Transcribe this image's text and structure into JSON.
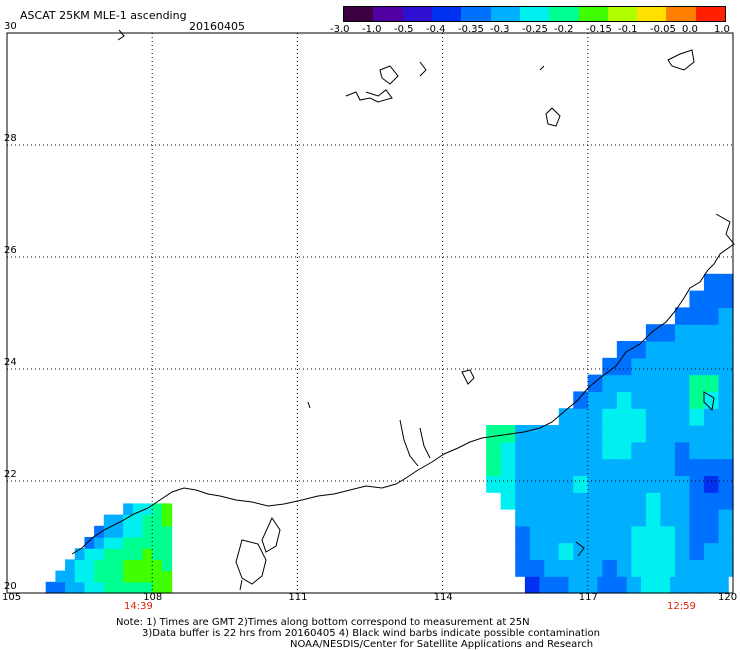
{
  "header": {
    "title": "ASCAT 25KM MLE-1 ascending",
    "date": "20160405"
  },
  "colorbar": {
    "labels": [
      "-3.0",
      "-1.0",
      "-0.5",
      "-0.4",
      "-0.35",
      "-0.3",
      "-0.25",
      "-0.2",
      "-0.15",
      "-0.1",
      "-0.05",
      "0.0",
      "1.0"
    ],
    "colors": [
      "#3a0040",
      "#5000a0",
      "#3010d0",
      "#0030f0",
      "#0070ff",
      "#00b0ff",
      "#00f0f0",
      "#00ff90",
      "#40ff00",
      "#b0ff00",
      "#ffe000",
      "#ff8000",
      "#ff2000"
    ]
  },
  "chart_data": {
    "type": "heatmap",
    "title": "ASCAT 25KM MLE-1 ascending",
    "xlim": [
      105,
      120
    ],
    "ylim": [
      20,
      30
    ],
    "x_ticks": [
      105,
      108,
      111,
      114,
      117,
      120
    ],
    "y_ticks": [
      20,
      22,
      24,
      26,
      28,
      30
    ],
    "x_tick_labels": [
      "105",
      "108",
      "111",
      "114",
      "117",
      "120"
    ],
    "y_tick_labels": [
      "20",
      "22",
      "24",
      "26",
      "28",
      "30"
    ],
    "grid": true,
    "pass_times": [
      {
        "label": "14:39",
        "near_lon": 108
      },
      {
        "label": "12:59",
        "near_lon": 119
      }
    ],
    "swaths": [
      {
        "name": "west",
        "cell_deg": 0.2,
        "lon_start": 105.8,
        "lat_start": 20.0,
        "rows": [
          {
            "lon0": 105.8,
            "values": [
              -0.35,
              -0.35,
              -0.3,
              -0.3,
              -0.25,
              -0.25,
              -0.2,
              -0.2,
              -0.2,
              -0.2,
              -0.2,
              -0.15,
              -0.15
            ]
          },
          {
            "lon0": 106.0,
            "values": [
              -0.3,
              -0.3,
              -0.25,
              -0.25,
              -0.2,
              -0.2,
              -0.2,
              -0.15,
              -0.15,
              -0.15,
              -0.15,
              -0.15
            ]
          },
          {
            "lon0": 106.2,
            "values": [
              -0.3,
              -0.25,
              -0.25,
              -0.2,
              -0.2,
              -0.2,
              -0.15,
              -0.15,
              -0.15,
              -0.15,
              -0.2
            ]
          },
          {
            "lon0": 106.4,
            "values": [
              -0.3,
              -0.25,
              -0.25,
              -0.2,
              -0.2,
              -0.2,
              -0.2,
              -0.15,
              -0.2,
              -0.2
            ]
          },
          {
            "lon0": 106.6,
            "values": [
              -0.35,
              -0.3,
              -0.25,
              -0.25,
              -0.2,
              -0.2,
              -0.2,
              -0.2,
              -0.2
            ]
          },
          {
            "lon0": 106.8,
            "values": [
              -0.35,
              -0.3,
              -0.3,
              -0.25,
              -0.25,
              -0.2,
              -0.2,
              -0.2
            ]
          },
          {
            "lon0": 107.0,
            "values": [
              -0.3,
              -0.3,
              -0.25,
              -0.25,
              -0.2,
              -0.2,
              -0.15
            ]
          },
          {
            "lon0": 107.4,
            "values": [
              -0.3,
              -0.25,
              -0.25,
              -0.2,
              -0.15
            ]
          }
        ]
      },
      {
        "name": "east",
        "cell_deg": 0.3,
        "lon_start": 114.9,
        "lat_start": 20.0,
        "rows": [
          {
            "lon0": 115.7,
            "values": [
              -0.4,
              -0.35,
              -0.35,
              -0.3,
              -0.3,
              -0.35,
              -0.35,
              -0.3,
              -0.25,
              -0.25,
              -0.3,
              -0.3,
              -0.3,
              -0.3
            ]
          },
          {
            "lon0": 115.5,
            "values": [
              -0.35,
              -0.35,
              -0.3,
              -0.3,
              -0.3,
              -0.3,
              -0.35,
              -0.3,
              -0.25,
              -0.25,
              -0.25,
              -0.3,
              -0.3,
              -0.3,
              -0.3
            ]
          },
          {
            "lon0": 115.5,
            "values": [
              -0.35,
              -0.3,
              -0.3,
              -0.25,
              -0.3,
              -0.3,
              -0.3,
              -0.3,
              -0.25,
              -0.25,
              -0.25,
              -0.3,
              -0.35,
              -0.3,
              -0.3
            ]
          },
          {
            "lon0": 115.5,
            "values": [
              -0.35,
              -0.3,
              -0.3,
              -0.3,
              -0.3,
              -0.3,
              -0.3,
              -0.3,
              -0.25,
              -0.25,
              -0.25,
              -0.3,
              -0.35,
              -0.35,
              -0.3
            ]
          },
          {
            "lon0": 115.5,
            "values": [
              -0.3,
              -0.3,
              -0.3,
              -0.3,
              -0.3,
              -0.3,
              -0.3,
              -0.3,
              -0.3,
              -0.25,
              -0.3,
              -0.3,
              -0.35,
              -0.35,
              -0.3
            ]
          },
          {
            "lon0": 115.2,
            "values": [
              -0.25,
              -0.3,
              -0.3,
              -0.3,
              -0.3,
              -0.3,
              -0.3,
              -0.3,
              -0.3,
              -0.3,
              -0.25,
              -0.3,
              -0.3,
              -0.35,
              -0.35,
              -0.35
            ]
          },
          {
            "lon0": 114.9,
            "values": [
              -0.25,
              -0.25,
              -0.3,
              -0.3,
              -0.3,
              -0.3,
              -0.25,
              -0.3,
              -0.3,
              -0.3,
              -0.3,
              -0.3,
              -0.3,
              -0.3,
              -0.35,
              -0.4,
              -0.35
            ]
          },
          {
            "lon0": 114.9,
            "values": [
              -0.2,
              -0.25,
              -0.3,
              -0.3,
              -0.3,
              -0.3,
              -0.3,
              -0.3,
              -0.3,
              -0.3,
              -0.3,
              -0.3,
              -0.3,
              -0.35,
              -0.35,
              -0.35,
              -0.35
            ]
          },
          {
            "lon0": 114.9,
            "values": [
              -0.2,
              -0.25,
              -0.3,
              -0.3,
              -0.3,
              -0.3,
              -0.3,
              -0.3,
              -0.25,
              -0.25,
              -0.3,
              -0.3,
              -0.3,
              -0.35,
              -0.3,
              -0.3,
              -0.3
            ]
          },
          {
            "lon0": 114.9,
            "values": [
              -0.2,
              -0.2,
              -0.3,
              -0.3,
              -0.3,
              -0.3,
              -0.3,
              -0.3,
              -0.25,
              -0.25,
              -0.25,
              -0.3,
              -0.3,
              -0.3,
              -0.3,
              -0.3,
              -0.3
            ]
          },
          {
            "lon0": 116.4,
            "values": [
              -0.3,
              -0.3,
              -0.3,
              -0.25,
              -0.25,
              -0.25,
              -0.3,
              -0.3,
              -0.3,
              -0.25,
              -0.3,
              -0.3
            ]
          },
          {
            "lon0": 116.7,
            "values": [
              -0.35,
              -0.3,
              -0.3,
              -0.25,
              -0.3,
              -0.3,
              -0.3,
              -0.3,
              -0.2,
              -0.25,
              -0.3
            ]
          },
          {
            "lon0": 117.0,
            "values": [
              -0.35,
              -0.3,
              -0.3,
              -0.3,
              -0.3,
              -0.3,
              -0.3,
              -0.2,
              -0.2,
              -0.3
            ]
          },
          {
            "lon0": 117.3,
            "values": [
              -0.35,
              -0.35,
              -0.3,
              -0.3,
              -0.3,
              -0.3,
              -0.3,
              -0.3,
              -0.3
            ]
          },
          {
            "lon0": 117.6,
            "values": [
              -0.35,
              -0.35,
              -0.3,
              -0.3,
              -0.3,
              -0.3,
              -0.3,
              -0.3
            ]
          },
          {
            "lon0": 118.2,
            "values": [
              -0.35,
              -0.35,
              -0.3,
              -0.3,
              -0.3,
              -0.3,
              -0.3
            ]
          },
          {
            "lon0": 118.8,
            "values": [
              -0.35,
              -0.35,
              -0.35,
              -0.3,
              -0.3
            ]
          },
          {
            "lon0": 119.1,
            "values": [
              -0.35,
              -0.35,
              -0.35,
              -0.35
            ]
          },
          {
            "lon0": 119.4,
            "values": [
              -0.35,
              -0.35,
              -0.35
            ]
          }
        ]
      }
    ]
  },
  "footer": {
    "note_line1": "Note: 1) Times are GMT 2)Times along bottom correspond to measurement at 25N",
    "note_line2": "3)Data buffer is 22 hrs from 20160405 4) Black wind barbs indicate possible contamination",
    "credit": "NOAA/NESDIS/Center for Satellite Applications and Research"
  }
}
